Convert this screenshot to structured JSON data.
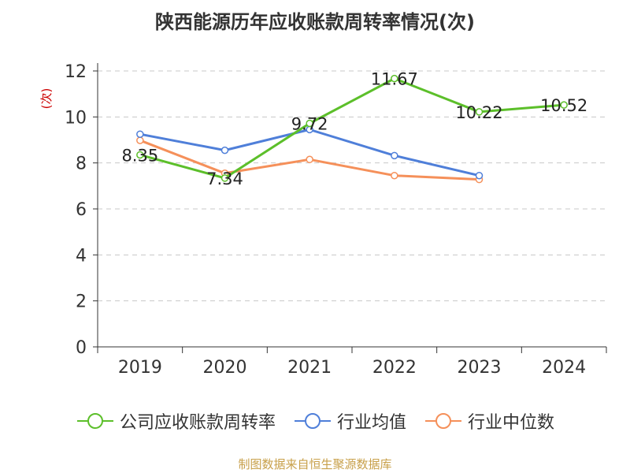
{
  "chart_data": {
    "type": "line",
    "title": "陕西能源历年应收账款周转率情况(次)",
    "ylabel": "(次)",
    "xlabel": "",
    "categories": [
      "2019",
      "2020",
      "2021",
      "2022",
      "2023",
      "2024"
    ],
    "ylim": [
      0,
      12
    ],
    "yticks": [
      0,
      2,
      4,
      6,
      8,
      10,
      12
    ],
    "grid": "horizontal-dashed",
    "series": [
      {
        "name": "公司应收账款周转率",
        "color": "#5cbf2a",
        "values": [
          8.35,
          7.34,
          9.72,
          11.67,
          10.22,
          10.52
        ],
        "show_labels": true
      },
      {
        "name": "行业均值",
        "color": "#4f7fd9",
        "values": [
          9.25,
          8.55,
          9.45,
          8.32,
          7.45,
          null
        ],
        "show_labels": false
      },
      {
        "name": "行业中位数",
        "color": "#f5905a",
        "values": [
          8.98,
          7.55,
          8.15,
          7.45,
          7.28,
          null
        ],
        "show_labels": false
      }
    ],
    "legend_position": "bottom"
  },
  "source": "制图数据来自恒生聚源数据库"
}
